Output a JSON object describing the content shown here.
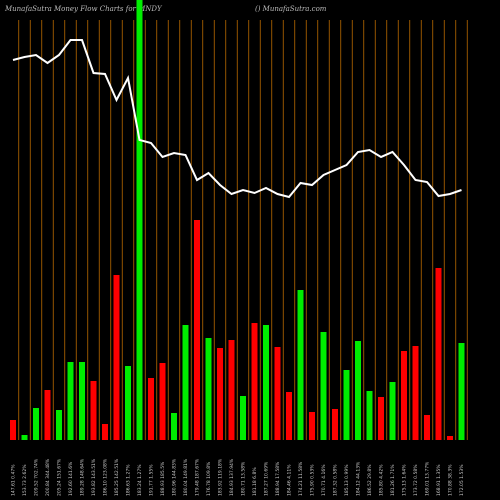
{
  "chart_data": {
    "type": "bar",
    "title": "MunafaSutra  Money Flow  Charts for MNDY",
    "subtitle": "() MunafaSutra.com",
    "categories": [
      "147.61 0.47%",
      "153.73 2.62%",
      "209.52 702.74%",
      "200.84 344.48%",
      "205.24 151.67%",
      "192.60 141.6%",
      "189.28 148.64%",
      "193.82 143.51%",
      "186.10 123.08%",
      "185.25 142.51%",
      "186.63 1.27%",
      "183.24 1.27%",
      "191.77 1.55%",
      "188.93 185.5%",
      "180.96 144.83%",
      "180.04 149.81%",
      "179.48 187.67%",
      "176.78 109.8%",
      "183.92 119.18%",
      "184.93 137.94%",
      "180.71 13.58%",
      "181.18 6.8%",
      "187.27 10.69%",
      "188.94 17.58%",
      "184.46 4.11%",
      "174.21 11.58%",
      "175.90 0.53%",
      "170.71 4.16%",
      "187.32 0.58%",
      "185.13 0.99%",
      "184.12 44.13%",
      "186.52 29.8%",
      "185.80 4.42%",
      "181.26 1.71%",
      "175.13 1.64%",
      "173.72 0.58%",
      "169.01 13.77%",
      "168.91 1.35%",
      "170.88 38.3%",
      "172.05 1.53%"
    ],
    "values": [
      20,
      5,
      32,
      50,
      30,
      78,
      78,
      59,
      16,
      165,
      74,
      440,
      62,
      77,
      27,
      115,
      220,
      102,
      92,
      100,
      44,
      117,
      115,
      93,
      48,
      150,
      28,
      108,
      31,
      70,
      99,
      49,
      43,
      58,
      89,
      94,
      25,
      172,
      4,
      97
    ],
    "colors": [
      "red",
      "green",
      "green",
      "red",
      "green",
      "green",
      "green",
      "red",
      "red",
      "red",
      "green",
      "green",
      "red",
      "red",
      "green",
      "green",
      "red",
      "green",
      "red",
      "red",
      "green",
      "red",
      "green",
      "red",
      "red",
      "green",
      "red",
      "green",
      "red",
      "green",
      "green",
      "green",
      "red",
      "green",
      "red",
      "red",
      "red",
      "red",
      "red",
      "green"
    ],
    "line_values": [
      380,
      383,
      385,
      377,
      385,
      400,
      400,
      367,
      366,
      340,
      362,
      300,
      297,
      283,
      287,
      285,
      260,
      267,
      255,
      246,
      250,
      247,
      252,
      246,
      243,
      257,
      255,
      265,
      270,
      275,
      288,
      290,
      283,
      288,
      275,
      260,
      258,
      244,
      246,
      250
    ],
    "ylim": [
      0,
      440
    ]
  }
}
